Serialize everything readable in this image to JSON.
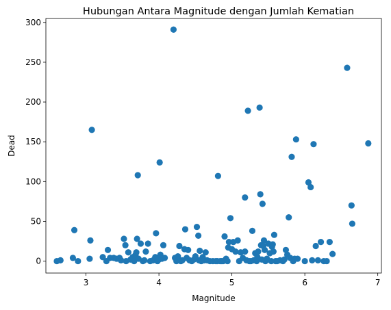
{
  "chart_data": {
    "type": "scatter",
    "title": "Hubungan Antara Magnitude dengan Jumlah Kematian",
    "xlabel": "Magnitude",
    "ylabel": "Dead",
    "xlim": [
      2.45,
      7.05
    ],
    "ylim": [
      -15,
      305
    ],
    "xticks": [
      3,
      4,
      5,
      6,
      7
    ],
    "yticks": [
      0,
      50,
      100,
      150,
      200,
      250,
      300
    ],
    "grid": false,
    "marker_color": "#1f77b4",
    "points": [
      [
        2.6,
        0
      ],
      [
        2.65,
        1
      ],
      [
        2.82,
        4
      ],
      [
        2.84,
        39
      ],
      [
        2.89,
        0
      ],
      [
        3.05,
        3
      ],
      [
        3.06,
        26
      ],
      [
        3.08,
        165
      ],
      [
        3.23,
        5
      ],
      [
        3.28,
        0
      ],
      [
        3.3,
        14
      ],
      [
        3.33,
        4
      ],
      [
        3.38,
        4
      ],
      [
        3.42,
        3
      ],
      [
        3.46,
        4
      ],
      [
        3.48,
        1
      ],
      [
        3.52,
        28
      ],
      [
        3.54,
        20
      ],
      [
        3.55,
        0
      ],
      [
        3.58,
        11
      ],
      [
        3.61,
        2
      ],
      [
        3.64,
        5
      ],
      [
        3.66,
        0
      ],
      [
        3.68,
        8
      ],
      [
        3.69,
        11
      ],
      [
        3.7,
        28
      ],
      [
        3.71,
        108
      ],
      [
        3.72,
        3
      ],
      [
        3.75,
        22
      ],
      [
        3.78,
        0
      ],
      [
        3.8,
        1
      ],
      [
        3.82,
        12
      ],
      [
        3.85,
        22
      ],
      [
        3.88,
        0
      ],
      [
        3.92,
        1
      ],
      [
        3.95,
        5
      ],
      [
        3.96,
        35
      ],
      [
        3.98,
        0
      ],
      [
        4.0,
        2
      ],
      [
        4.01,
        124
      ],
      [
        4.02,
        8
      ],
      [
        4.04,
        3
      ],
      [
        4.06,
        20
      ],
      [
        4.08,
        4
      ],
      [
        4.2,
        291
      ],
      [
        4.22,
        4
      ],
      [
        4.24,
        0
      ],
      [
        4.26,
        6
      ],
      [
        4.28,
        19
      ],
      [
        4.3,
        0
      ],
      [
        4.32,
        1
      ],
      [
        4.35,
        15
      ],
      [
        4.36,
        40
      ],
      [
        4.38,
        4
      ],
      [
        4.4,
        14
      ],
      [
        4.42,
        1
      ],
      [
        4.45,
        0
      ],
      [
        4.48,
        2
      ],
      [
        4.5,
        6
      ],
      [
        4.52,
        43
      ],
      [
        4.54,
        32
      ],
      [
        4.55,
        1
      ],
      [
        4.56,
        13
      ],
      [
        4.58,
        0
      ],
      [
        4.6,
        5
      ],
      [
        4.62,
        1
      ],
      [
        4.64,
        11
      ],
      [
        4.66,
        1
      ],
      [
        4.7,
        0
      ],
      [
        4.74,
        0
      ],
      [
        4.78,
        0
      ],
      [
        4.8,
        0
      ],
      [
        4.81,
        107
      ],
      [
        4.84,
        0
      ],
      [
        4.86,
        0
      ],
      [
        4.88,
        0
      ],
      [
        4.9,
        31
      ],
      [
        4.92,
        3
      ],
      [
        4.94,
        0
      ],
      [
        4.95,
        17
      ],
      [
        4.96,
        24
      ],
      [
        4.98,
        54
      ],
      [
        5.0,
        15
      ],
      [
        5.02,
        24
      ],
      [
        5.05,
        12
      ],
      [
        5.08,
        26
      ],
      [
        5.1,
        0
      ],
      [
        5.12,
        11
      ],
      [
        5.15,
        4
      ],
      [
        5.18,
        12
      ],
      [
        5.18,
        80
      ],
      [
        5.2,
        1
      ],
      [
        5.22,
        189
      ],
      [
        5.24,
        0
      ],
      [
        5.26,
        0
      ],
      [
        5.28,
        38
      ],
      [
        5.3,
        1
      ],
      [
        5.32,
        10
      ],
      [
        5.34,
        0
      ],
      [
        5.35,
        5
      ],
      [
        5.36,
        12
      ],
      [
        5.38,
        193
      ],
      [
        5.39,
        84
      ],
      [
        5.4,
        20
      ],
      [
        5.41,
        2
      ],
      [
        5.42,
        72
      ],
      [
        5.43,
        19
      ],
      [
        5.44,
        26
      ],
      [
        5.45,
        14
      ],
      [
        5.46,
        0
      ],
      [
        5.48,
        3
      ],
      [
        5.5,
        22
      ],
      [
        5.52,
        10
      ],
      [
        5.54,
        0
      ],
      [
        5.55,
        18
      ],
      [
        5.56,
        21
      ],
      [
        5.57,
        12
      ],
      [
        5.58,
        33
      ],
      [
        5.6,
        0
      ],
      [
        5.62,
        0
      ],
      [
        5.66,
        1
      ],
      [
        5.7,
        0
      ],
      [
        5.72,
        2
      ],
      [
        5.74,
        14
      ],
      [
        5.76,
        8
      ],
      [
        5.78,
        55
      ],
      [
        5.8,
        4
      ],
      [
        5.82,
        131
      ],
      [
        5.84,
        0
      ],
      [
        5.86,
        3
      ],
      [
        5.88,
        153
      ],
      [
        5.9,
        3
      ],
      [
        6.0,
        0
      ],
      [
        6.05,
        99
      ],
      [
        6.08,
        93
      ],
      [
        6.1,
        1
      ],
      [
        6.12,
        147
      ],
      [
        6.15,
        19
      ],
      [
        6.18,
        1
      ],
      [
        6.22,
        24
      ],
      [
        6.26,
        0
      ],
      [
        6.3,
        0
      ],
      [
        6.34,
        24
      ],
      [
        6.38,
        9
      ],
      [
        6.58,
        243
      ],
      [
        6.64,
        70
      ],
      [
        6.65,
        47
      ],
      [
        6.87,
        148
      ]
    ]
  }
}
